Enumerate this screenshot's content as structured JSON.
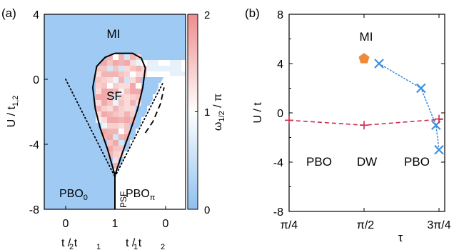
{
  "chart_data": [
    {
      "type": "heatmap",
      "panel_label": "(a)",
      "ylabel": "U / t",
      "ylabel_sub": "1,2",
      "ylim": [
        -8,
        4
      ],
      "y_ticks": [
        "4",
        "0",
        "-4",
        "-8"
      ],
      "x_ticks": [
        "0",
        "1",
        "0"
      ],
      "xlabel_left": "t / t",
      "xlabel_left_sub": [
        "2",
        "1"
      ],
      "xlabel_right": "t / t",
      "xlabel_right_sub": [
        "1",
        "2"
      ],
      "colorbar": {
        "label": "ω",
        "label_sub": "1/2",
        "label_tail": " / π",
        "ticks": [
          "2",
          "1",
          "0"
        ],
        "range": [
          0,
          2
        ]
      },
      "regions": [
        {
          "label": "MI",
          "sub": ""
        },
        {
          "label": "SF",
          "sub": ""
        },
        {
          "label": "PBO",
          "sub": "0"
        },
        {
          "label": "PBO",
          "sub": "π"
        },
        {
          "label": "PSF",
          "sub": ""
        }
      ],
      "boundaries": [
        {
          "name": "sf-boundary",
          "style": "solid",
          "x": [
            1.0,
            0.8,
            0.63,
            0.55,
            0.6,
            0.7,
            0.85,
            1.0,
            1.15,
            1.3,
            1.45,
            1.55,
            1.6,
            1.52,
            1.35,
            1.0
          ],
          "y": [
            1.6,
            1.35,
            0.8,
            -0.5,
            -1.8,
            -3.0,
            -4.3,
            -5.9,
            -4.5,
            -3.2,
            -1.8,
            -0.5,
            0.7,
            1.3,
            1.6,
            1.6
          ]
        },
        {
          "name": "psf-line",
          "style": "solid",
          "x": [
            1.0,
            1.0
          ],
          "y": [
            -5.9,
            -8.0
          ]
        },
        {
          "name": "dotted-left",
          "style": "dotted",
          "x": [
            0.0,
            1.0
          ],
          "y": [
            0.0,
            -6.0
          ]
        },
        {
          "name": "dotted-right",
          "style": "dotted",
          "x": [
            1.0,
            1.95
          ],
          "y": [
            -6.0,
            -0.2
          ]
        },
        {
          "name": "dashed-right",
          "style": "dashed",
          "x": [
            1.6,
            1.75,
            1.9,
            1.97
          ],
          "y": [
            -3.3,
            -2.6,
            -1.5,
            -0.5
          ]
        }
      ]
    },
    {
      "type": "scatter",
      "panel_label": "(b)",
      "xlabel": "τ",
      "ylabel": "U / t",
      "ylim": [
        -8,
        8
      ],
      "y_ticks": [
        "8",
        "4",
        "0",
        "-4",
        "-8"
      ],
      "x_ticks": [
        "π/4",
        "π/2",
        "3π/4"
      ],
      "xlim": [
        0.25,
        0.75
      ],
      "x_unit": "π",
      "regions": [
        {
          "label": "MI"
        },
        {
          "label": "PBO"
        },
        {
          "label": "DW"
        },
        {
          "label": "PBO"
        }
      ],
      "series": [
        {
          "marker": "cross",
          "color": "#3d8fe0",
          "line": "dotted",
          "x": [
            0.55,
            0.69,
            0.74,
            0.75
          ],
          "y": [
            4.0,
            2.0,
            -1.0,
            -3.0
          ]
        },
        {
          "marker": "plus",
          "color": "#cc2d4b",
          "line": "dashed",
          "x": [
            0.25,
            0.5,
            0.75
          ],
          "y": [
            -0.6,
            -1.0,
            -0.5
          ]
        },
        {
          "marker": "pentagon",
          "color": "#ef8a3a",
          "line": "none",
          "x": [
            0.5
          ],
          "y": [
            4.4
          ]
        }
      ]
    }
  ]
}
